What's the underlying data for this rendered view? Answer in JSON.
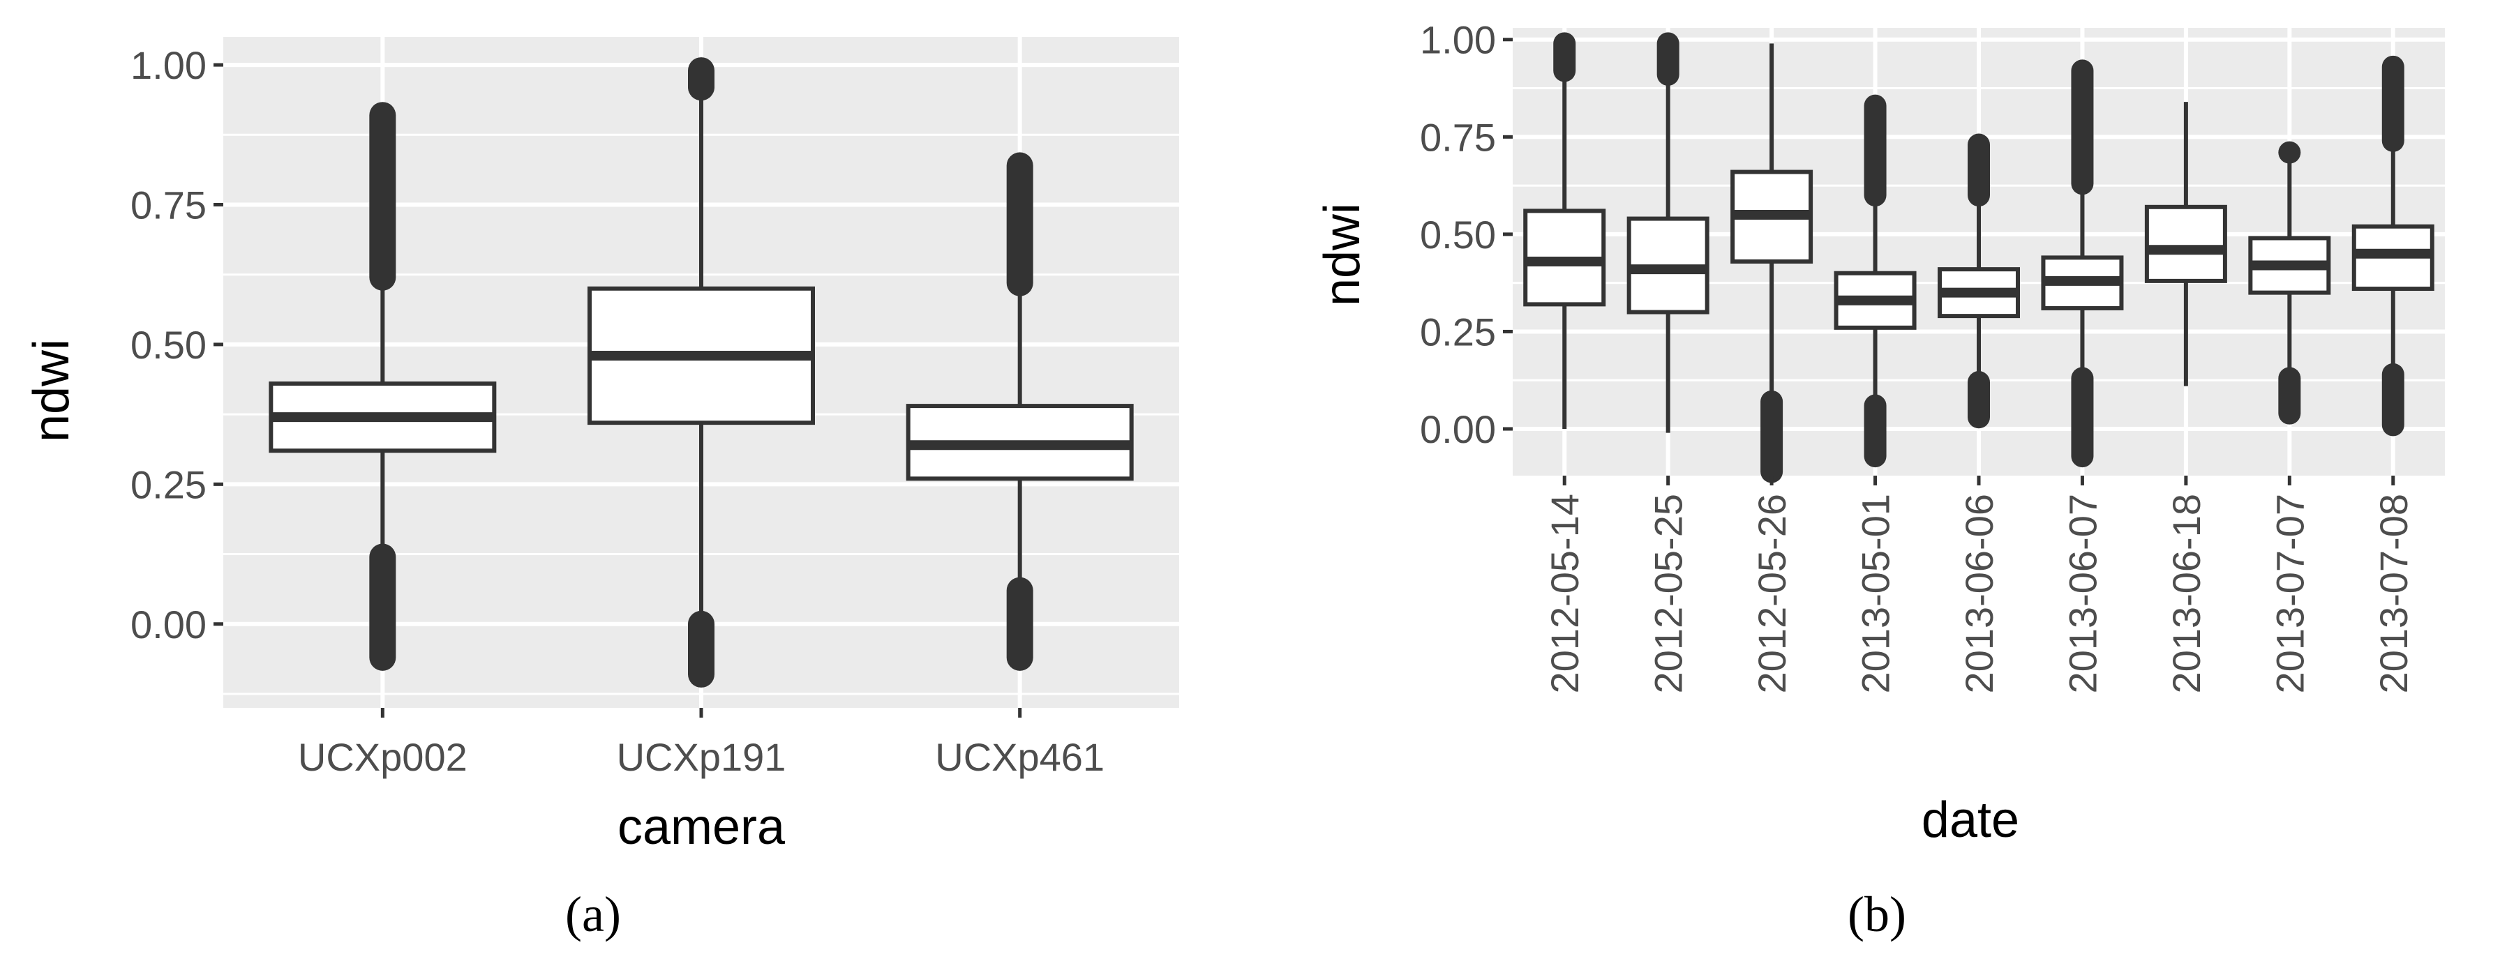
{
  "chart_data": [
    {
      "type": "box",
      "panel_label": "(a)",
      "xlabel": "camera",
      "ylabel": "ndwi",
      "ylim": [
        -0.15,
        1.05
      ],
      "y_ticks": [
        "0.00",
        "0.25",
        "0.50",
        "0.75",
        "1.00"
      ],
      "y_tick_values": [
        0,
        0.25,
        0.5,
        0.75,
        1.0
      ],
      "categories": [
        "UCXp002",
        "UCXp191",
        "UCXp461"
      ],
      "boxes": [
        {
          "whisker_low": 0.12,
          "q1": 0.31,
          "median": 0.37,
          "q3": 0.43,
          "whisker_high": 0.62,
          "outliers_low": [
            -0.06,
            0.12
          ],
          "outliers_high": [
            0.62,
            0.91
          ]
        },
        {
          "whisker_low": 0.0,
          "q1": 0.36,
          "median": 0.48,
          "q3": 0.6,
          "whisker_high": 0.96,
          "outliers_low": [
            -0.09,
            0.0
          ],
          "outliers_high": [
            0.96,
            0.99
          ]
        },
        {
          "whisker_low": 0.05,
          "q1": 0.26,
          "median": 0.32,
          "q3": 0.39,
          "whisker_high": 0.61,
          "outliers_low": [
            -0.06,
            0.06
          ],
          "outliers_high": [
            0.61,
            0.82
          ]
        }
      ],
      "grid": true
    },
    {
      "type": "box",
      "panel_label": "(b)",
      "xlabel": "date",
      "ylabel": "ndwi",
      "ylim": [
        -0.12,
        1.03
      ],
      "y_ticks": [
        "0.00",
        "0.25",
        "0.50",
        "0.75",
        "1.00"
      ],
      "y_tick_values": [
        0,
        0.25,
        0.5,
        0.75,
        1.0
      ],
      "categories": [
        "2012-05-14",
        "2012-05-25",
        "2012-05-26",
        "2013-05-01",
        "2013-06-06",
        "2013-06-07",
        "2013-06-18",
        "2013-07-07",
        "2013-07-08"
      ],
      "boxes": [
        {
          "whisker_low": 0.0,
          "q1": 0.32,
          "median": 0.43,
          "q3": 0.56,
          "whisker_high": 0.92,
          "outliers_low": [],
          "outliers_high": [
            0.92,
            0.99
          ]
        },
        {
          "whisker_low": -0.01,
          "q1": 0.3,
          "median": 0.41,
          "q3": 0.54,
          "whisker_high": 0.91,
          "outliers_low": [],
          "outliers_high": [
            0.91,
            0.99
          ]
        },
        {
          "whisker_low": 0.07,
          "q1": 0.43,
          "median": 0.55,
          "q3": 0.66,
          "whisker_high": 0.99,
          "outliers_low": [
            -0.11,
            0.07
          ],
          "outliers_high": []
        },
        {
          "whisker_low": 0.06,
          "q1": 0.26,
          "median": 0.33,
          "q3": 0.4,
          "whisker_high": 0.6,
          "outliers_low": [
            -0.07,
            0.06
          ],
          "outliers_high": [
            0.6,
            0.83
          ]
        },
        {
          "whisker_low": 0.12,
          "q1": 0.29,
          "median": 0.35,
          "q3": 0.41,
          "whisker_high": 0.6,
          "outliers_low": [
            0.03,
            0.12
          ],
          "outliers_high": [
            0.6,
            0.73
          ]
        },
        {
          "whisker_low": 0.13,
          "q1": 0.31,
          "median": 0.38,
          "q3": 0.44,
          "whisker_high": 0.63,
          "outliers_low": [
            -0.07,
            0.13
          ],
          "outliers_high": [
            0.63,
            0.92
          ]
        },
        {
          "whisker_low": 0.11,
          "q1": 0.38,
          "median": 0.46,
          "q3": 0.57,
          "whisker_high": 0.84,
          "outliers_low": [],
          "outliers_high": []
        },
        {
          "whisker_low": 0.13,
          "q1": 0.35,
          "median": 0.42,
          "q3": 0.49,
          "whisker_high": 0.71,
          "outliers_low": [
            0.04,
            0.13
          ],
          "outliers_high": [
            0.71
          ]
        },
        {
          "whisker_low": 0.14,
          "q1": 0.36,
          "median": 0.45,
          "q3": 0.52,
          "whisker_high": 0.74,
          "outliers_low": [
            0.01,
            0.14
          ],
          "outliers_high": [
            0.74,
            0.93
          ]
        }
      ],
      "grid": true
    }
  ]
}
